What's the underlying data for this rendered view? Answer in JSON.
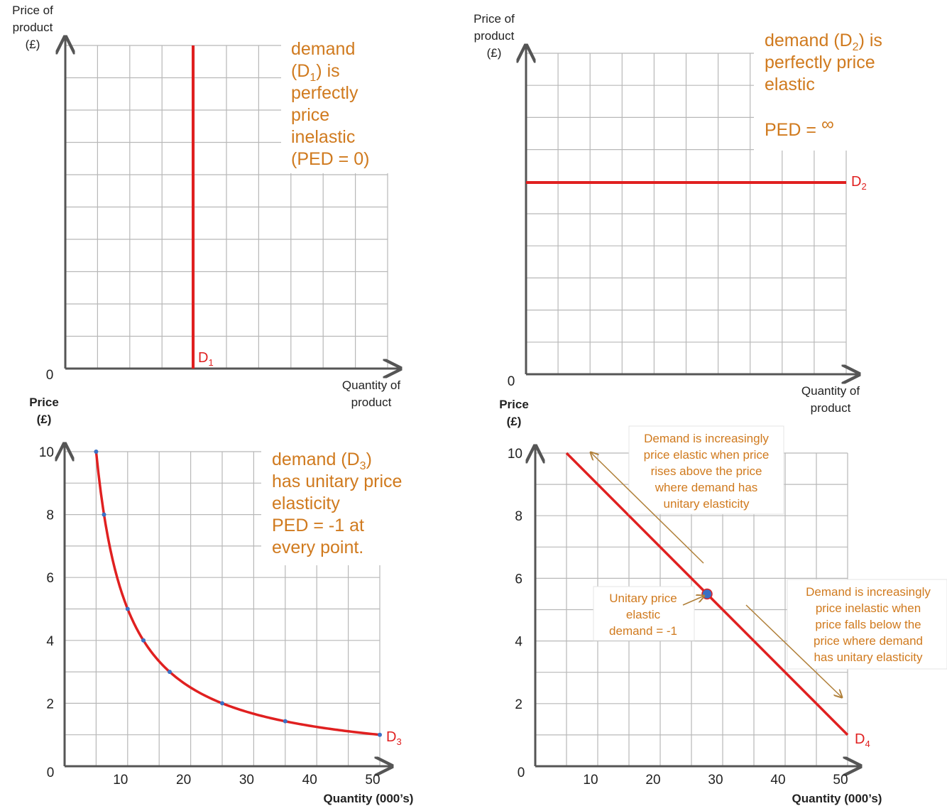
{
  "colors": {
    "curve": "#e02020",
    "grid": "#b8b8b8",
    "axis": "#555555",
    "note": "#d07a1e",
    "point": "#3a6fc4"
  },
  "chart_data": [
    {
      "type": "line",
      "title": "",
      "ylabel_lines": [
        "Price of",
        "product",
        "(£)"
      ],
      "xlabel_lines": [
        "Quantity of",
        "product"
      ],
      "origin_label": "0",
      "series": [
        {
          "name": "D1",
          "label_main": "D",
          "label_sub": "1",
          "shape": "vertical",
          "x_fraction": 0.4
        }
      ],
      "note_lines": [
        "demand",
        "(D",
        "1",
        ") is",
        "perfectly",
        "price",
        "inelastic",
        "(PED = 0)"
      ]
    },
    {
      "type": "line",
      "title": "",
      "ylabel_lines": [
        "Price of",
        "product",
        "(£)"
      ],
      "xlabel_lines": [
        "Quantity of",
        "product"
      ],
      "origin_label": "0",
      "series": [
        {
          "name": "D2",
          "label_main": "D",
          "label_sub": "2",
          "shape": "horizontal",
          "y_fraction": 0.6
        }
      ],
      "note_lines": [
        "demand (D",
        "2",
        ") is",
        "perfectly  price",
        "elastic",
        "PED =",
        "∞"
      ]
    },
    {
      "type": "line",
      "title": "",
      "ylabel_lines": [
        "Price",
        "(£)"
      ],
      "xlabel": "Quantity (000’s)",
      "xlim": [
        0,
        50
      ],
      "ylim": [
        0,
        10
      ],
      "xticks": [
        10,
        20,
        30,
        40,
        50
      ],
      "yticks": [
        2,
        4,
        6,
        8,
        10
      ],
      "origin_label": "0",
      "series": [
        {
          "name": "D3",
          "label_main": "D",
          "label_sub": "3",
          "x": [
            5,
            6.25,
            10,
            12.5,
            16.67,
            25,
            35,
            50
          ],
          "y": [
            10,
            8,
            5,
            4,
            3,
            2,
            1.43,
            1
          ]
        }
      ],
      "note_lines": [
        "demand (D",
        "3",
        ")",
        "has unitary price",
        "elasticity",
        "PED = -1  at",
        "every point."
      ]
    },
    {
      "type": "line",
      "title": "",
      "ylabel_lines": [
        "Price",
        "(£)"
      ],
      "xlabel": "Quantity (000’s)",
      "xlim": [
        0,
        50
      ],
      "ylim": [
        0,
        10
      ],
      "xticks": [
        10,
        20,
        30,
        40,
        50
      ],
      "yticks": [
        2,
        4,
        6,
        8,
        10
      ],
      "origin_label": "0",
      "series": [
        {
          "name": "D4",
          "label_main": "D",
          "label_sub": "4",
          "x": [
            5,
            50
          ],
          "y": [
            10,
            1
          ]
        }
      ],
      "unitary_point": {
        "x": 27.5,
        "y": 5.5
      },
      "annotations": {
        "elastic": [
          "Demand is increasingly",
          "price elastic when price",
          "rises above the price",
          "where demand has",
          "unitary elasticity"
        ],
        "unitary": [
          "Unitary price",
          "elastic",
          "demand  = -1"
        ],
        "inelastic": [
          "Demand is increasingly",
          "price inelastic when",
          "price falls below the",
          "price where demand",
          "has unitary elasticity"
        ]
      }
    }
  ]
}
